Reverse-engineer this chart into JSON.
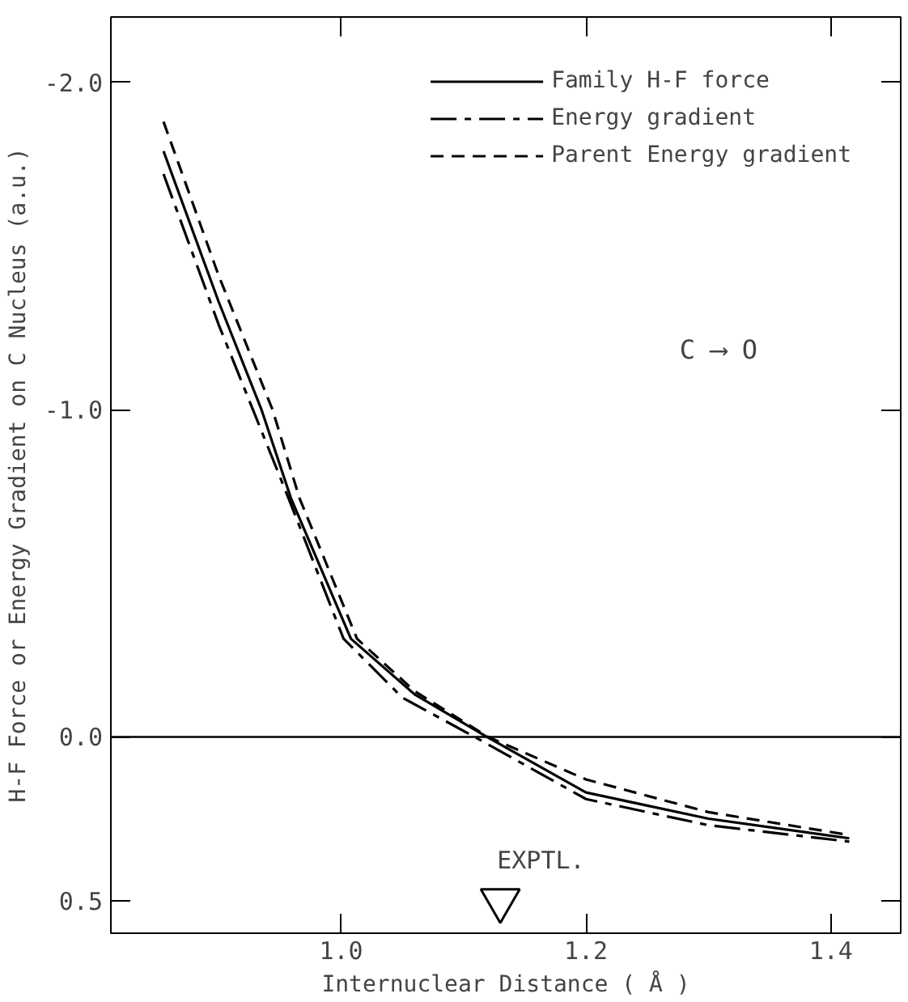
{
  "chart_data": {
    "type": "line",
    "xlabel": "Internuclear Distance ( Å )",
    "ylabel": "H-F Force or Energy Gradient on C Nucleus (a.u.)",
    "xlim": [
      0.812,
      1.457
    ],
    "ylim": [
      0.6,
      -2.2
    ],
    "xticks": [
      {
        "value": 1.0,
        "label": "1.0"
      },
      {
        "value": 1.2,
        "label": "1.2"
      },
      {
        "value": 1.4,
        "label": "1.4"
      }
    ],
    "yticks": [
      {
        "value": -2.0,
        "label": "-2.0"
      },
      {
        "value": -1.0,
        "label": "-1.0"
      },
      {
        "value": 0.0,
        "label": "0.0"
      },
      {
        "value": 0.5,
        "label": "0.5"
      }
    ],
    "series": [
      {
        "name": "Family H-F force",
        "color": "#000000",
        "line_style": "solid",
        "x": [
          0.855,
          0.9,
          0.935,
          0.959,
          1.008,
          1.06,
          1.119,
          1.2,
          1.3,
          1.415
        ],
        "values": [
          -1.79,
          -1.33,
          -1.0,
          -0.73,
          -0.3,
          -0.13,
          0.0,
          0.17,
          0.25,
          0.31
        ]
      },
      {
        "name": "Energy gradient",
        "color": "#000000",
        "line_style": "dashdot",
        "x": [
          0.855,
          0.9,
          0.928,
          0.957,
          1.002,
          1.05,
          1.109,
          1.2,
          1.3,
          1.415
        ],
        "values": [
          -1.72,
          -1.26,
          -1.0,
          -0.73,
          -0.3,
          -0.12,
          0.0,
          0.19,
          0.27,
          0.32
        ]
      },
      {
        "name": "Parent Energy gradient",
        "color": "#000000",
        "line_style": "dashed",
        "x": [
          0.855,
          0.9,
          0.944,
          0.966,
          1.013,
          1.06,
          1.12,
          1.2,
          1.3,
          1.415
        ],
        "values": [
          -1.88,
          -1.41,
          -1.0,
          -0.73,
          -0.3,
          -0.14,
          0.0,
          0.13,
          0.23,
          0.3
        ]
      },
      {
        "type": "scatter",
        "name": "EXPTL.",
        "color": "#000000",
        "marker": "triangle",
        "x": [
          1.13
        ],
        "values": [
          0.5
        ]
      }
    ],
    "ref_lines": [
      {
        "axis": "y",
        "value": 0.0,
        "color": "#000000"
      }
    ],
    "annotations": [
      "C ⟶ O"
    ],
    "legend": "top right",
    "grid": false,
    "marker": "none"
  }
}
